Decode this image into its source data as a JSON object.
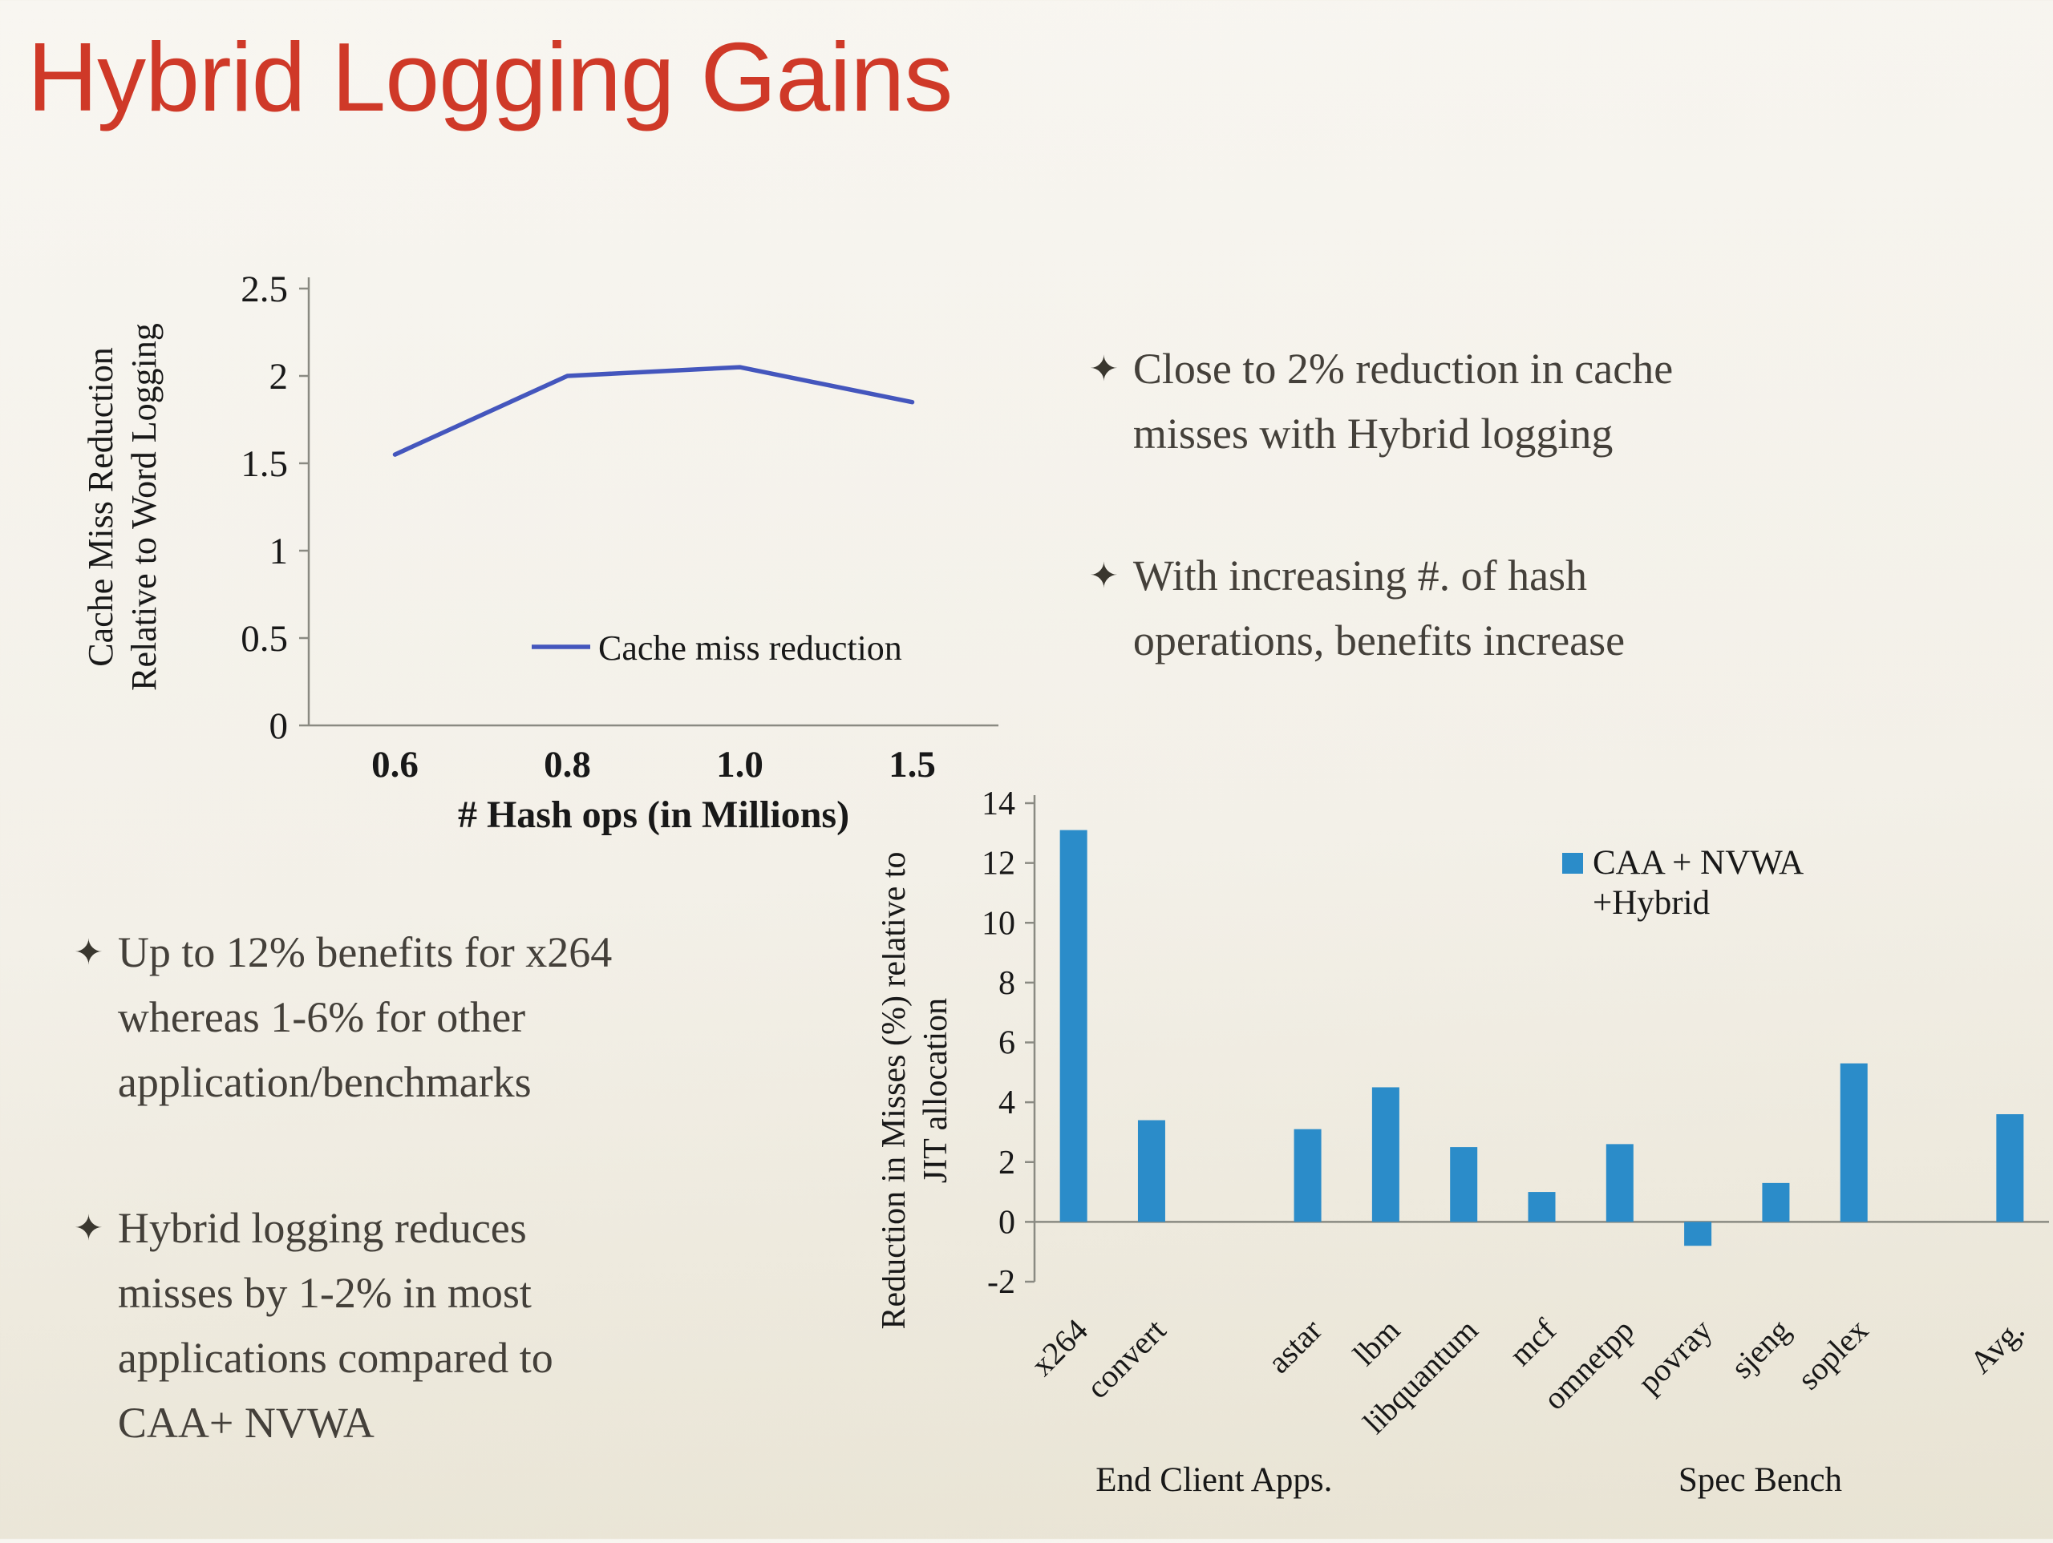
{
  "slide": {
    "title": "Hybrid Logging Gains",
    "title_color": "#cf3928",
    "background_color": "#f3f0e8",
    "text_color": "#44403a"
  },
  "bullets": {
    "right": [
      {
        "marker": "✦",
        "text": "Close to 2% reduction in cache\nmisses with Hybrid logging"
      },
      {
        "marker": "✦",
        "text": "With increasing #. of hash\noperations, benefits increase"
      }
    ],
    "left": [
      {
        "marker": "✦",
        "text": "Up to 12% benefits for x264\nwhereas 1-6% for other\napplication/benchmarks"
      },
      {
        "marker": "✦",
        "text": "Hybrid logging reduces\nmisses by 1-2% in most\napplications compared to\nCAA+ NVWA"
      }
    ]
  },
  "chart_data": [
    {
      "type": "line",
      "title": "",
      "x": [
        0.6,
        0.8,
        1.0,
        1.5
      ],
      "x_tick_labels": [
        "0.6",
        "0.8",
        "1.0",
        "1.5"
      ],
      "series": [
        {
          "name": "Cache miss reduction",
          "values": [
            1.55,
            2.0,
            2.05,
            1.85
          ],
          "color": "#4456bd"
        }
      ],
      "xlabel": "# Hash ops (in Millions)",
      "ylabel": "Cache Miss Reduction\nRelative to Word Logging",
      "ylim": [
        0,
        2.5
      ],
      "yticks": [
        0,
        0.5,
        1,
        1.5,
        2,
        2.5
      ],
      "legend": "Cache miss reduction",
      "legend_position": "inside-bottom",
      "grid": false
    },
    {
      "type": "bar",
      "title": "",
      "categories": [
        "x264",
        "convert",
        "astar",
        "lbm",
        "libquantum",
        "mcf",
        "omnetpp",
        "povray",
        "sjeng",
        "soplex",
        "Avg."
      ],
      "values": [
        13.1,
        3.4,
        3.1,
        4.5,
        2.5,
        1.0,
        2.6,
        -0.8,
        1.3,
        5.3,
        3.6
      ],
      "bar_color": "#2b8cc9",
      "xlabel": "",
      "ylabel": "Reduction in Misses (%) relative to\nJIT allocation",
      "ylim": [
        -2,
        14
      ],
      "yticks": [
        -2,
        0,
        2,
        4,
        6,
        8,
        10,
        12,
        14
      ],
      "legend_lines": [
        "CAA + NVWA",
        "+Hybrid"
      ],
      "legend_position": "inside-top-right",
      "groups": [
        {
          "label": "End Client Apps.",
          "start": 0,
          "end": 1,
          "label_slot": 1.8
        },
        {
          "label": "Spec Bench",
          "start": 2,
          "end": 9,
          "label_slot": 8.8
        }
      ],
      "grid": false
    }
  ]
}
